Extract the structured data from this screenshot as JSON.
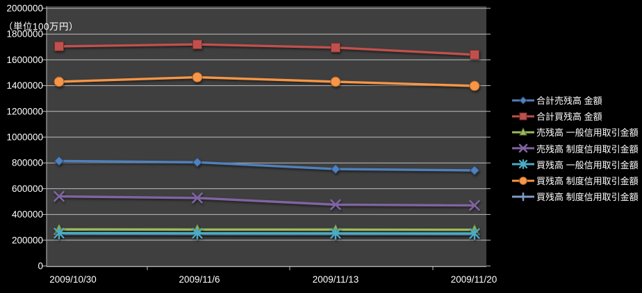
{
  "chart_data": {
    "type": "line",
    "title": "",
    "unit_label": "（単位100万円）",
    "categories": [
      "2009/10/30",
      "2009/11/6",
      "2009/11/13",
      "2009/11/20"
    ],
    "series": [
      {
        "name": "合計売残高 金額",
        "color": "#4F81BD",
        "marker": "diamond",
        "values": [
          815000,
          805000,
          752000,
          742000
        ]
      },
      {
        "name": "合計買残高 金額",
        "color": "#C0504D",
        "marker": "square",
        "values": [
          1705000,
          1720000,
          1695000,
          1640000
        ]
      },
      {
        "name": "売残高 一般信用取引金額",
        "color": "#9BBB59",
        "marker": "triangle",
        "values": [
          284000,
          283000,
          282000,
          281000
        ]
      },
      {
        "name": "売残高 制度信用取引金額",
        "color": "#8064A2",
        "marker": "x",
        "values": [
          540000,
          528000,
          476000,
          470000
        ]
      },
      {
        "name": "買残高 一般信用取引金額",
        "color": "#4BACC6",
        "marker": "star",
        "values": [
          255000,
          254000,
          253000,
          252000
        ]
      },
      {
        "name": "買残高 制度信用取引金額",
        "color": "#F79646",
        "marker": "circle",
        "values": [
          1430000,
          1465000,
          1430000,
          1398000
        ]
      },
      {
        "name": "買残高 制度信用取引金額",
        "color": "#7F9AC6",
        "marker": "plus",
        "values": [
          248000,
          247000,
          246000,
          245000
        ]
      }
    ],
    "ylim": [
      0,
      2000000
    ],
    "ytick_step": 200000,
    "ytick_labels": [
      "0",
      "200000",
      "400000",
      "600000",
      "800000",
      "1000000",
      "1200000",
      "1400000",
      "1600000",
      "1800000",
      "2000000"
    ],
    "grid": true,
    "legend_position": "right",
    "plot_bg": "#3F3F3F",
    "grid_color": "#BFBFBF",
    "text_color": "#FFFFFF",
    "page_bg": "#000000"
  }
}
